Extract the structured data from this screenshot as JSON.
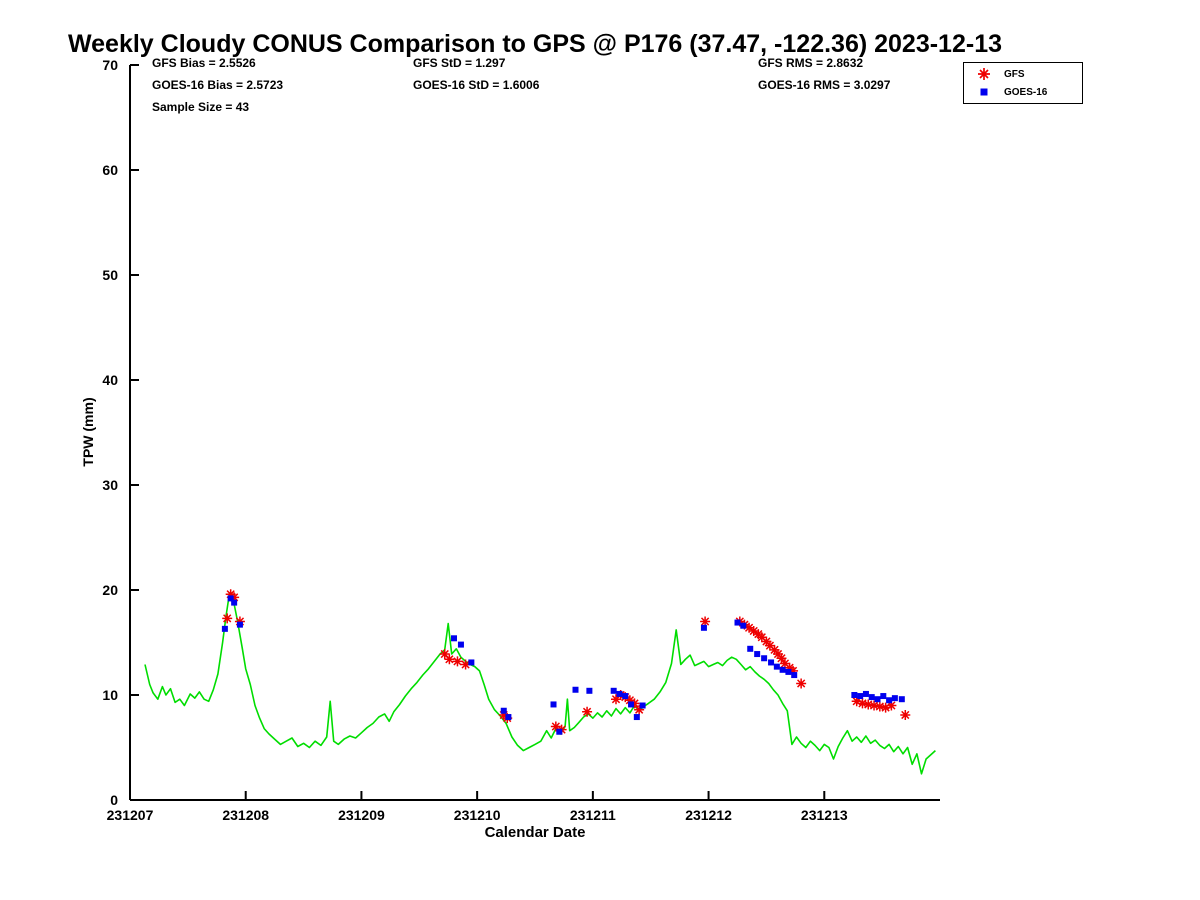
{
  "chart": {
    "title": "Weekly Cloudy CONUS Comparison to GPS @ P176 (37.47, -122.36) 2023-12-13",
    "stats": {
      "gfs_bias": "GFS Bias = 2.5526",
      "goes_bias": "GOES-16 Bias = 2.5723",
      "sample_size": "Sample Size = 43",
      "gfs_std": "GFS StD = 1.297",
      "goes_std": "GOES-16 StD = 1.6006",
      "gfs_rms": "GFS RMS = 2.8632",
      "goes_rms": "GOES-16 RMS = 3.0297"
    },
    "legend": [
      {
        "label": "GFS",
        "marker": "red-asterisk"
      },
      {
        "label": "GOES-16",
        "marker": "blue-square"
      }
    ],
    "xlabel": "Calendar Date",
    "ylabel": "TPW (mm)"
  },
  "chart_data": {
    "type": "line+scatter",
    "title": "Weekly Cloudy CONUS Comparison to GPS @ P176 (37.47, -122.36) 2023-12-13",
    "xlabel": "Calendar Date",
    "ylabel": "TPW (mm)",
    "x_unit": "days since 231207",
    "xlim": [
      0,
      7
    ],
    "ylim": [
      0,
      70
    ],
    "grid": false,
    "legend_position": "top-right-outside-plot",
    "xticks": [
      {
        "value": 0,
        "label": "231207"
      },
      {
        "value": 1,
        "label": "231208"
      },
      {
        "value": 2,
        "label": "231209"
      },
      {
        "value": 3,
        "label": "231210"
      },
      {
        "value": 4,
        "label": "231211"
      },
      {
        "value": 5,
        "label": "231212"
      },
      {
        "value": 6,
        "label": "231213"
      }
    ],
    "yticks": [
      {
        "value": 0,
        "label": "0"
      },
      {
        "value": 10,
        "label": "10"
      },
      {
        "value": 20,
        "label": "20"
      },
      {
        "value": 30,
        "label": "30"
      },
      {
        "value": 40,
        "label": "40"
      },
      {
        "value": 50,
        "label": "50"
      },
      {
        "value": 60,
        "label": "60"
      },
      {
        "value": 70,
        "label": "70"
      }
    ],
    "gps": {
      "name": "GPS",
      "style": "line",
      "color": "#00dd00",
      "points": [
        [
          0.13,
          12.9
        ],
        [
          0.17,
          11.0
        ],
        [
          0.2,
          10.2
        ],
        [
          0.24,
          9.6
        ],
        [
          0.28,
          10.8
        ],
        [
          0.31,
          10.0
        ],
        [
          0.35,
          10.6
        ],
        [
          0.39,
          9.3
        ],
        [
          0.43,
          9.6
        ],
        [
          0.47,
          9.0
        ],
        [
          0.52,
          10.1
        ],
        [
          0.56,
          9.7
        ],
        [
          0.6,
          10.3
        ],
        [
          0.64,
          9.6
        ],
        [
          0.68,
          9.4
        ],
        [
          0.72,
          10.5
        ],
        [
          0.76,
          12.0
        ],
        [
          0.8,
          15.0
        ],
        [
          0.83,
          17.5
        ],
        [
          0.86,
          19.7
        ],
        [
          0.89,
          19.2
        ],
        [
          0.93,
          17.0
        ],
        [
          0.97,
          14.5
        ],
        [
          1.0,
          12.5
        ],
        [
          1.04,
          11.0
        ],
        [
          1.08,
          9.0
        ],
        [
          1.12,
          7.8
        ],
        [
          1.16,
          6.8
        ],
        [
          1.2,
          6.3
        ],
        [
          1.25,
          5.8
        ],
        [
          1.3,
          5.3
        ],
        [
          1.35,
          5.6
        ],
        [
          1.4,
          5.9
        ],
        [
          1.45,
          5.1
        ],
        [
          1.5,
          5.4
        ],
        [
          1.55,
          5.0
        ],
        [
          1.6,
          5.6
        ],
        [
          1.65,
          5.2
        ],
        [
          1.7,
          6.0
        ],
        [
          1.73,
          9.4
        ],
        [
          1.76,
          5.6
        ],
        [
          1.8,
          5.3
        ],
        [
          1.85,
          5.8
        ],
        [
          1.9,
          6.1
        ],
        [
          1.95,
          5.9
        ],
        [
          2.0,
          6.4
        ],
        [
          2.05,
          6.9
        ],
        [
          2.1,
          7.3
        ],
        [
          2.15,
          7.9
        ],
        [
          2.2,
          8.2
        ],
        [
          2.24,
          7.5
        ],
        [
          2.28,
          8.4
        ],
        [
          2.33,
          9.1
        ],
        [
          2.38,
          9.9
        ],
        [
          2.43,
          10.6
        ],
        [
          2.48,
          11.2
        ],
        [
          2.53,
          11.9
        ],
        [
          2.58,
          12.5
        ],
        [
          2.63,
          13.2
        ],
        [
          2.68,
          13.9
        ],
        [
          2.72,
          14.3
        ],
        [
          2.75,
          16.8
        ],
        [
          2.78,
          13.9
        ],
        [
          2.82,
          14.4
        ],
        [
          2.86,
          13.6
        ],
        [
          2.9,
          13.2
        ],
        [
          2.94,
          12.9
        ],
        [
          2.98,
          12.7
        ],
        [
          3.02,
          12.3
        ],
        [
          3.06,
          11.0
        ],
        [
          3.1,
          9.6
        ],
        [
          3.15,
          8.6
        ],
        [
          3.2,
          8.0
        ],
        [
          3.25,
          7.3
        ],
        [
          3.3,
          6.0
        ],
        [
          3.35,
          5.2
        ],
        [
          3.4,
          4.7
        ],
        [
          3.45,
          5.0
        ],
        [
          3.5,
          5.3
        ],
        [
          3.55,
          5.6
        ],
        [
          3.6,
          6.6
        ],
        [
          3.64,
          5.9
        ],
        [
          3.68,
          6.8
        ],
        [
          3.72,
          6.3
        ],
        [
          3.76,
          7.0
        ],
        [
          3.78,
          9.6
        ],
        [
          3.8,
          6.6
        ],
        [
          3.84,
          6.9
        ],
        [
          3.88,
          7.4
        ],
        [
          3.92,
          7.9
        ],
        [
          3.96,
          8.2
        ],
        [
          4.0,
          7.8
        ],
        [
          4.04,
          8.3
        ],
        [
          4.08,
          7.9
        ],
        [
          4.12,
          8.5
        ],
        [
          4.16,
          8.0
        ],
        [
          4.2,
          8.7
        ],
        [
          4.24,
          8.2
        ],
        [
          4.28,
          8.8
        ],
        [
          4.32,
          8.3
        ],
        [
          4.36,
          9.0
        ],
        [
          4.4,
          8.5
        ],
        [
          4.44,
          8.9
        ],
        [
          4.48,
          9.2
        ],
        [
          4.53,
          9.6
        ],
        [
          4.58,
          10.3
        ],
        [
          4.63,
          11.2
        ],
        [
          4.68,
          13.0
        ],
        [
          4.72,
          16.2
        ],
        [
          4.76,
          12.9
        ],
        [
          4.8,
          13.4
        ],
        [
          4.84,
          13.8
        ],
        [
          4.88,
          12.8
        ],
        [
          4.92,
          13.0
        ],
        [
          4.96,
          13.2
        ],
        [
          5.0,
          12.7
        ],
        [
          5.04,
          12.9
        ],
        [
          5.08,
          13.1
        ],
        [
          5.12,
          12.8
        ],
        [
          5.16,
          13.3
        ],
        [
          5.2,
          13.6
        ],
        [
          5.24,
          13.4
        ],
        [
          5.28,
          12.9
        ],
        [
          5.32,
          12.4
        ],
        [
          5.36,
          12.7
        ],
        [
          5.4,
          12.2
        ],
        [
          5.44,
          11.8
        ],
        [
          5.48,
          11.5
        ],
        [
          5.52,
          11.1
        ],
        [
          5.56,
          10.5
        ],
        [
          5.6,
          10.0
        ],
        [
          5.64,
          9.2
        ],
        [
          5.68,
          8.5
        ],
        [
          5.72,
          5.3
        ],
        [
          5.76,
          6.0
        ],
        [
          5.8,
          5.4
        ],
        [
          5.84,
          5.0
        ],
        [
          5.88,
          5.6
        ],
        [
          5.92,
          5.2
        ],
        [
          5.96,
          4.7
        ],
        [
          6.0,
          5.3
        ],
        [
          6.04,
          5.0
        ],
        [
          6.08,
          3.9
        ],
        [
          6.12,
          5.1
        ],
        [
          6.16,
          5.9
        ],
        [
          6.2,
          6.6
        ],
        [
          6.24,
          5.6
        ],
        [
          6.28,
          6.0
        ],
        [
          6.32,
          5.5
        ],
        [
          6.36,
          6.1
        ],
        [
          6.4,
          5.4
        ],
        [
          6.44,
          5.7
        ],
        [
          6.48,
          5.2
        ],
        [
          6.52,
          4.9
        ],
        [
          6.56,
          5.3
        ],
        [
          6.6,
          4.6
        ],
        [
          6.64,
          5.1
        ],
        [
          6.68,
          4.4
        ],
        [
          6.72,
          5.0
        ],
        [
          6.76,
          3.4
        ],
        [
          6.8,
          4.4
        ],
        [
          6.84,
          2.5
        ],
        [
          6.88,
          3.9
        ],
        [
          6.92,
          4.3
        ],
        [
          6.96,
          4.7
        ]
      ]
    },
    "gfs": {
      "name": "GFS",
      "style": "asterisk",
      "color": "#ee0000",
      "points": [
        [
          0.84,
          17.3
        ],
        [
          0.87,
          19.6
        ],
        [
          0.9,
          19.3
        ],
        [
          0.95,
          17.0
        ],
        [
          2.72,
          13.9
        ],
        [
          2.76,
          13.4
        ],
        [
          2.83,
          13.2
        ],
        [
          2.9,
          12.9
        ],
        [
          3.23,
          8.1
        ],
        [
          3.26,
          7.8
        ],
        [
          3.68,
          7.0
        ],
        [
          3.73,
          6.7
        ],
        [
          3.95,
          8.4
        ],
        [
          4.2,
          9.6
        ],
        [
          4.24,
          10.0
        ],
        [
          4.28,
          9.8
        ],
        [
          4.32,
          9.5
        ],
        [
          4.36,
          9.2
        ],
        [
          4.4,
          8.6
        ],
        [
          4.97,
          17.0
        ],
        [
          5.27,
          17.0
        ],
        [
          5.31,
          16.7
        ],
        [
          5.35,
          16.4
        ],
        [
          5.39,
          16.1
        ],
        [
          5.43,
          15.8
        ],
        [
          5.46,
          15.5
        ],
        [
          5.5,
          15.1
        ],
        [
          5.53,
          14.7
        ],
        [
          5.57,
          14.3
        ],
        [
          5.6,
          13.9
        ],
        [
          5.63,
          13.5
        ],
        [
          5.66,
          13.0
        ],
        [
          5.7,
          12.6
        ],
        [
          5.73,
          12.3
        ],
        [
          5.8,
          11.1
        ],
        [
          6.28,
          9.4
        ],
        [
          6.33,
          9.2
        ],
        [
          6.38,
          9.1
        ],
        [
          6.43,
          9.0
        ],
        [
          6.48,
          8.9
        ],
        [
          6.53,
          8.8
        ],
        [
          6.58,
          9.0
        ],
        [
          6.7,
          8.1
        ]
      ]
    },
    "goes16": {
      "name": "GOES-16",
      "style": "square",
      "color": "#0000ee",
      "points": [
        [
          0.82,
          16.3
        ],
        [
          0.87,
          19.2
        ],
        [
          0.9,
          18.8
        ],
        [
          0.95,
          16.7
        ],
        [
          2.8,
          15.4
        ],
        [
          2.86,
          14.8
        ],
        [
          2.95,
          13.1
        ],
        [
          3.23,
          8.5
        ],
        [
          3.27,
          7.9
        ],
        [
          3.66,
          9.1
        ],
        [
          3.71,
          6.5
        ],
        [
          3.85,
          10.5
        ],
        [
          3.97,
          10.4
        ],
        [
          4.18,
          10.4
        ],
        [
          4.23,
          10.1
        ],
        [
          4.28,
          9.9
        ],
        [
          4.33,
          9.1
        ],
        [
          4.38,
          7.9
        ],
        [
          4.43,
          9.0
        ],
        [
          4.96,
          16.4
        ],
        [
          5.25,
          16.9
        ],
        [
          5.3,
          16.6
        ],
        [
          5.36,
          14.4
        ],
        [
          5.42,
          13.9
        ],
        [
          5.48,
          13.5
        ],
        [
          5.54,
          13.1
        ],
        [
          5.59,
          12.7
        ],
        [
          5.64,
          12.4
        ],
        [
          5.69,
          12.2
        ],
        [
          5.74,
          11.9
        ],
        [
          6.26,
          10.0
        ],
        [
          6.31,
          9.9
        ],
        [
          6.36,
          10.1
        ],
        [
          6.41,
          9.8
        ],
        [
          6.46,
          9.6
        ],
        [
          6.51,
          9.9
        ],
        [
          6.56,
          9.5
        ],
        [
          6.61,
          9.7
        ],
        [
          6.67,
          9.6
        ]
      ]
    }
  }
}
